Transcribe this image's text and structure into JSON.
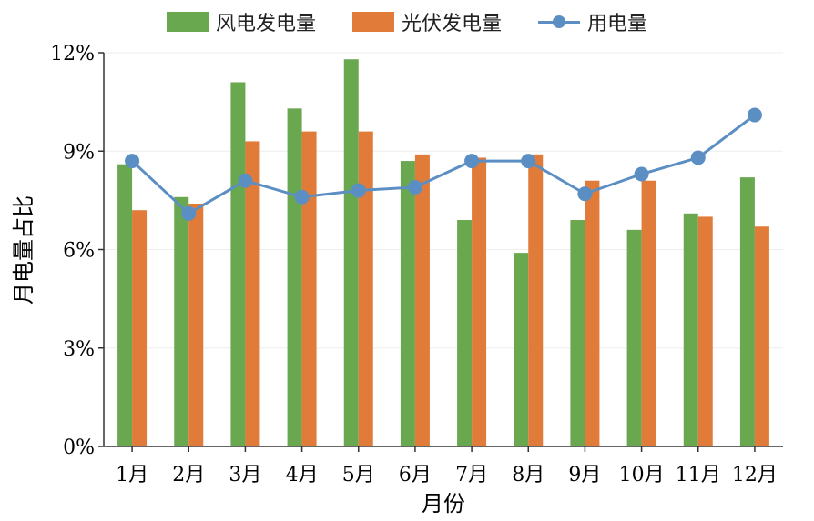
{
  "colors": {
    "wind": "#6aa84f",
    "solar": "#e07b39",
    "usage": "#5b8fc3",
    "axis": "#333333",
    "grid": "#eeeeee"
  },
  "legend": {
    "wind": "风电发电量",
    "solar": "光伏发电量",
    "usage": "用电量"
  },
  "chart_data": {
    "type": "bar",
    "title": "",
    "xlabel": "月份",
    "ylabel": "月电量占比",
    "ylim": [
      0,
      12
    ],
    "yticks": [
      0,
      3,
      6,
      9,
      12
    ],
    "ytick_labels": [
      "0%",
      "3%",
      "6%",
      "9%",
      "12%"
    ],
    "categories": [
      "1月",
      "2月",
      "3月",
      "4月",
      "5月",
      "6月",
      "7月",
      "8月",
      "9月",
      "10月",
      "11月",
      "12月"
    ],
    "series": [
      {
        "name": "风电发电量",
        "type": "bar",
        "values": [
          8.6,
          7.6,
          11.1,
          10.3,
          11.8,
          8.7,
          6.9,
          5.9,
          6.9,
          6.6,
          7.1,
          8.2
        ]
      },
      {
        "name": "光伏发电量",
        "type": "bar",
        "values": [
          7.2,
          7.4,
          9.3,
          9.6,
          9.6,
          8.9,
          8.8,
          8.9,
          8.1,
          8.1,
          7.0,
          6.7
        ]
      },
      {
        "name": "用电量",
        "type": "line",
        "values": [
          8.7,
          7.1,
          8.1,
          7.6,
          7.8,
          7.9,
          8.7,
          8.7,
          7.7,
          8.3,
          8.8,
          10.1
        ]
      }
    ],
    "grid": true,
    "legend_position": "top"
  }
}
